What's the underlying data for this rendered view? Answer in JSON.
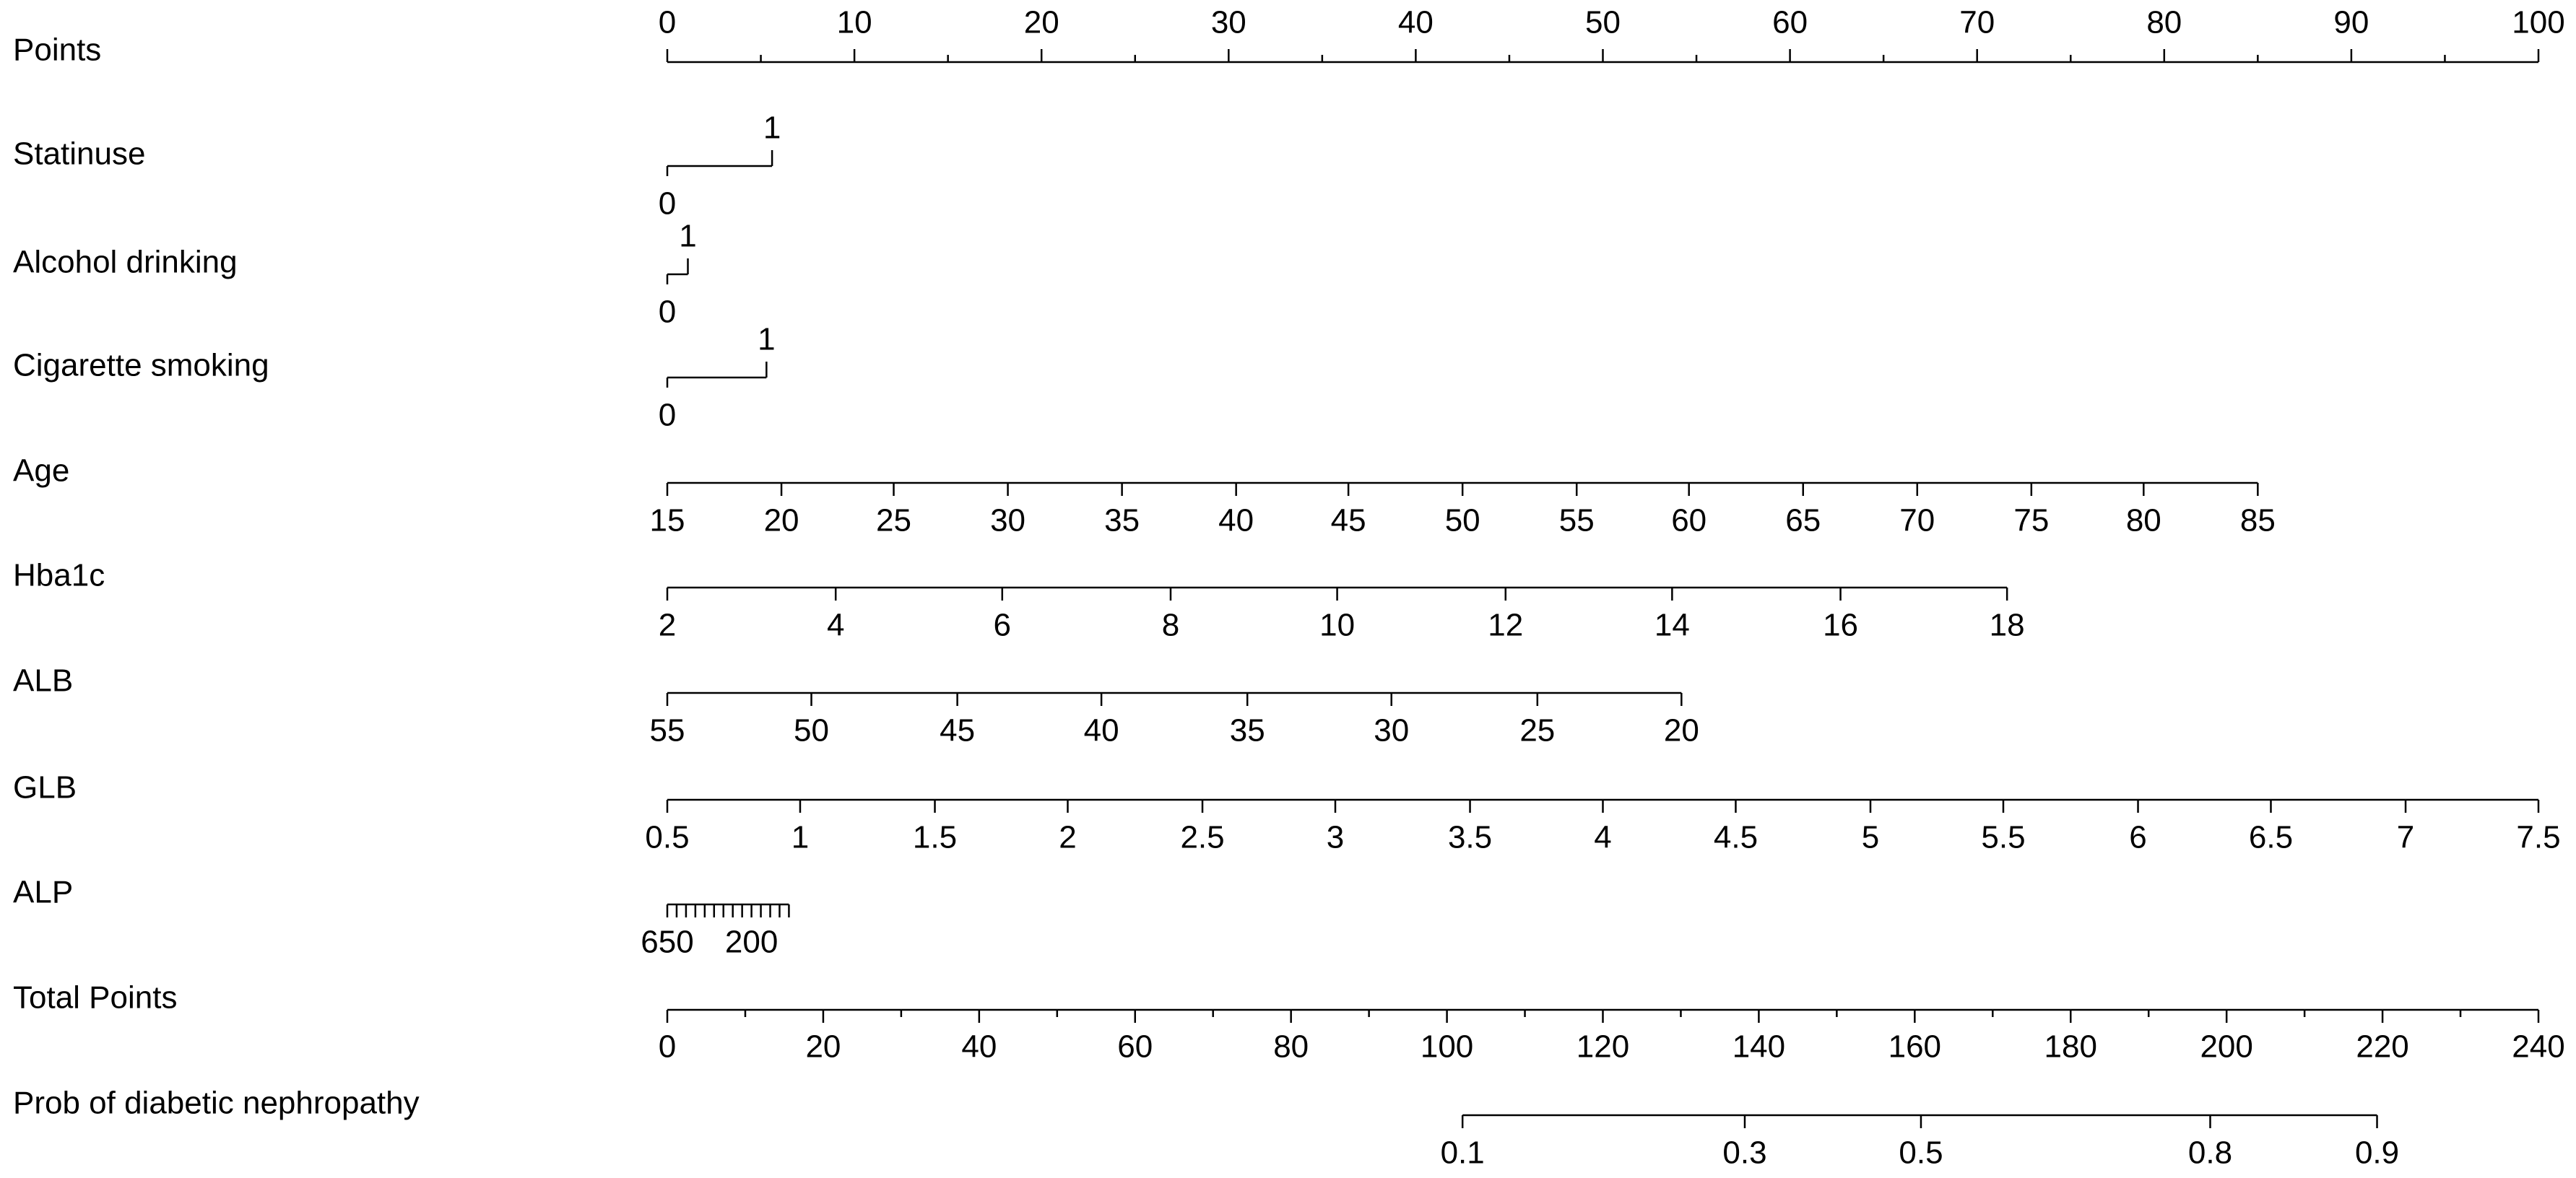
{
  "chart_data": {
    "type": "nomogram",
    "rows": [
      {
        "label": "Points",
        "style": "points_axis",
        "lim": [
          0,
          100
        ],
        "ticks": [
          0,
          10,
          20,
          30,
          40,
          50,
          60,
          70,
          80,
          90,
          100
        ],
        "minor_ticks": [
          5,
          15,
          25,
          35,
          45,
          55,
          65,
          75,
          85,
          95
        ]
      },
      {
        "label": "Statinuse",
        "style": "binary",
        "ticks": [
          0,
          1
        ],
        "tick_points": [
          0,
          5.6
        ]
      },
      {
        "label": "Alcohol drinking",
        "style": "binary",
        "ticks": [
          0,
          1
        ],
        "tick_points": [
          0,
          1.1
        ]
      },
      {
        "label": "Cigarette smoking",
        "style": "binary",
        "ticks": [
          0,
          1
        ],
        "tick_points": [
          0,
          5.3
        ]
      },
      {
        "label": "Age",
        "style": "scale",
        "ticks": [
          15,
          20,
          25,
          30,
          35,
          40,
          45,
          50,
          55,
          60,
          65,
          70,
          75,
          80,
          85
        ],
        "tick_points": [
          0,
          6.1,
          12.1,
          18.2,
          24.3,
          30.4,
          36.4,
          42.5,
          48.6,
          54.6,
          60.7,
          66.8,
          72.9,
          78.9,
          85
        ]
      },
      {
        "label": "Hba1c",
        "style": "scale",
        "ticks": [
          2,
          4,
          6,
          8,
          10,
          12,
          14,
          16,
          18
        ],
        "tick_points": [
          0,
          9,
          17.9,
          26.9,
          35.8,
          44.8,
          53.7,
          62.7,
          71.6
        ]
      },
      {
        "label": "ALB",
        "style": "scale",
        "ticks": [
          55,
          50,
          45,
          40,
          35,
          30,
          25,
          20
        ],
        "tick_points": [
          0,
          7.7,
          15.5,
          23.2,
          31,
          38.7,
          46.5,
          54.2
        ]
      },
      {
        "label": "GLB",
        "style": "scale",
        "ticks": [
          0.5,
          1,
          1.5,
          2,
          2.5,
          3,
          3.5,
          4,
          4.5,
          5,
          5.5,
          6,
          6.5,
          7,
          7.5
        ],
        "tick_points": [
          0,
          7.1,
          14.3,
          21.4,
          28.6,
          35.7,
          42.9,
          50,
          57.1,
          64.3,
          71.4,
          78.6,
          85.7,
          92.9,
          100
        ]
      },
      {
        "label": "ALP",
        "style": "scale",
        "ticks": [
          650,
          200
        ],
        "tick_points": [
          0,
          4.5
        ],
        "minor_tick_points": [
          0.5,
          1,
          1.5,
          2,
          2.5,
          3,
          3.5,
          4,
          5,
          5.5,
          6,
          6.5
        ]
      },
      {
        "label": "Total Points",
        "style": "total_axis",
        "lim": [
          0,
          240
        ],
        "ticks": [
          0,
          20,
          40,
          60,
          80,
          100,
          120,
          140,
          160,
          180,
          200,
          220,
          240
        ],
        "minor_ticks": [
          10,
          30,
          50,
          70,
          90,
          110,
          130,
          150,
          170,
          190,
          210,
          230
        ]
      },
      {
        "label": "Prob of diabetic nephropathy",
        "style": "total_scale",
        "ticks": [
          0.1,
          0.3,
          0.5,
          0.8,
          0.9
        ],
        "tick_points": [
          102,
          138.2,
          160.8,
          197.9,
          219.3
        ]
      }
    ]
  }
}
